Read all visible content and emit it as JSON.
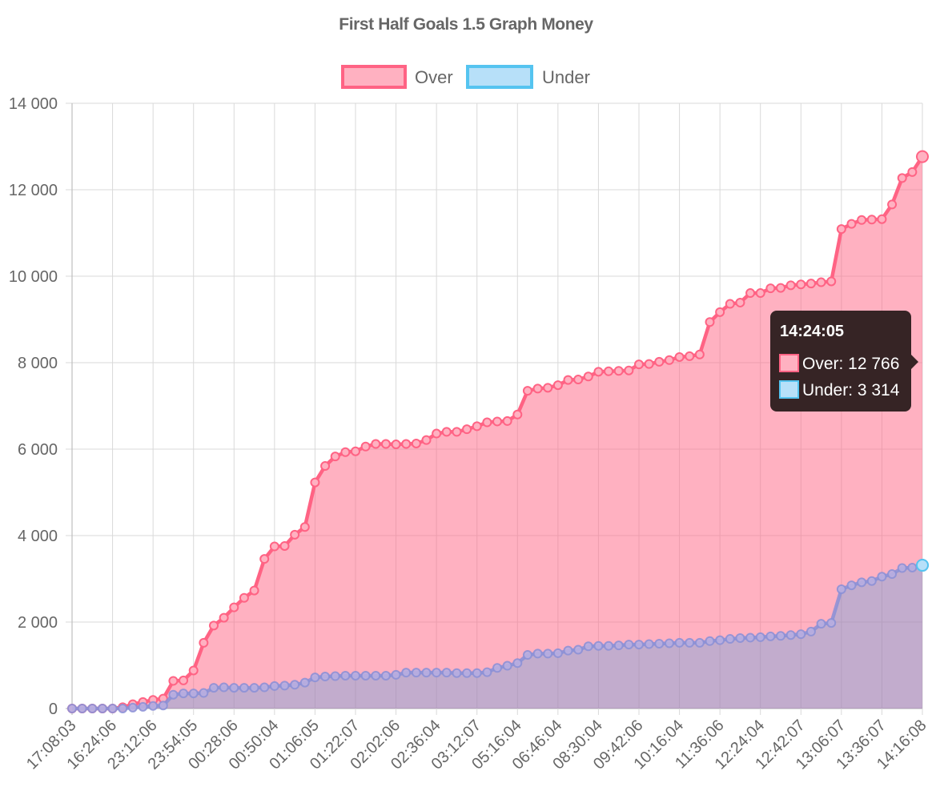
{
  "chart_data": {
    "type": "area",
    "title": "First Half Goals 1.5 Graph Money",
    "ylim": [
      0,
      14000
    ],
    "y_ticks": [
      0,
      2000,
      4000,
      6000,
      8000,
      10000,
      12000,
      14000
    ],
    "y_tick_labels": [
      "0",
      "2 000",
      "4 000",
      "6 000",
      "8 000",
      "10 000",
      "12 000",
      "14 000"
    ],
    "x_tick_labels": [
      "17:08:03",
      "16:24:06",
      "23:12:06",
      "23:54:05",
      "00:28:06",
      "00:50:04",
      "01:06:05",
      "01:22:07",
      "02:02:06",
      "02:36:04",
      "03:12:07",
      "05:16:04",
      "06:46:04",
      "08:30:04",
      "09:42:06",
      "10:16:04",
      "11:36:06",
      "12:24:04",
      "12:42:07",
      "13:06:07",
      "13:36:07",
      "14:16:08"
    ],
    "legend_position": "top",
    "grid": true,
    "series": [
      {
        "name": "Over",
        "line_color": "#ff6384",
        "fill_color": "#ffb1c1",
        "values": [
          0,
          0,
          0,
          0,
          0,
          30,
          100,
          150,
          200,
          230,
          640,
          650,
          880,
          1520,
          1920,
          2100,
          2340,
          2560,
          2730,
          3460,
          3750,
          3760,
          4020,
          4200,
          5230,
          5610,
          5830,
          5930,
          5950,
          6060,
          6120,
          6120,
          6110,
          6120,
          6130,
          6210,
          6360,
          6400,
          6400,
          6460,
          6530,
          6620,
          6640,
          6650,
          6800,
          7350,
          7400,
          7420,
          7480,
          7600,
          7610,
          7680,
          7790,
          7800,
          7810,
          7820,
          7960,
          7970,
          8020,
          8060,
          8130,
          8150,
          8190,
          8940,
          9170,
          9360,
          9390,
          9610,
          9610,
          9720,
          9730,
          9790,
          9810,
          9830,
          9860,
          9880,
          11090,
          11210,
          11300,
          11310,
          11320,
          11660,
          12270,
          12410,
          12766
        ]
      },
      {
        "name": "Under",
        "line_color": "#36a2eb",
        "fill_color": "#9ad0f5",
        "values": [
          0,
          0,
          0,
          0,
          0,
          0,
          20,
          40,
          60,
          70,
          320,
          350,
          350,
          360,
          480,
          490,
          480,
          480,
          480,
          490,
          520,
          530,
          550,
          600,
          720,
          740,
          750,
          760,
          760,
          760,
          760,
          760,
          780,
          830,
          830,
          830,
          830,
          830,
          820,
          820,
          820,
          840,
          940,
          990,
          1050,
          1240,
          1270,
          1270,
          1280,
          1340,
          1360,
          1440,
          1450,
          1450,
          1460,
          1480,
          1480,
          1490,
          1500,
          1510,
          1520,
          1520,
          1520,
          1560,
          1580,
          1610,
          1630,
          1640,
          1650,
          1670,
          1680,
          1700,
          1720,
          1780,
          1960,
          1980,
          2760,
          2850,
          2920,
          2950,
          3050,
          3110,
          3250,
          3260,
          3314
        ]
      }
    ]
  },
  "tooltip": {
    "title": "14:24:05",
    "over_label": "Over: 12 766",
    "under_label": "Under: 3 314"
  },
  "colors": {
    "over_line": "#ff6384",
    "over_fill": "#ffb1c1",
    "under_line": "#36a2eb",
    "under_fill": "#9ad0f5",
    "tooltip_bg": "#362425"
  }
}
